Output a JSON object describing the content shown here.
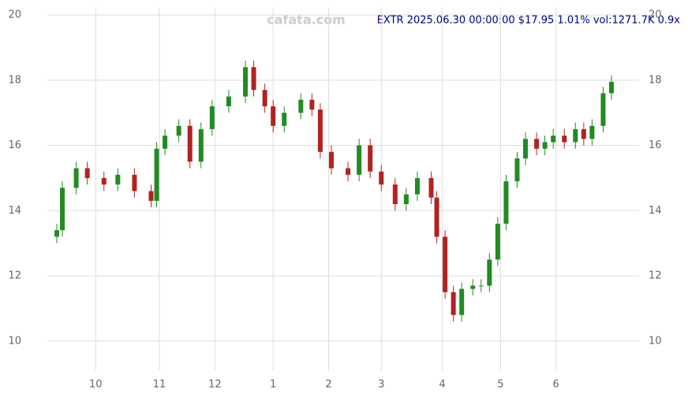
{
  "chart_data": {
    "type": "candlestick",
    "title": "EXTR 2025.06.30 00:00:00 $17.95 1.01% vol:1271.7K 0.9x",
    "watermark": "cafata.com",
    "up_color": "#228b22",
    "down_color": "#b22222",
    "grid": true,
    "x": [
      0,
      2,
      7,
      11,
      17,
      22,
      28,
      34,
      36,
      39,
      44,
      48,
      52,
      56,
      62,
      68,
      71,
      75,
      78,
      82,
      88,
      92,
      95,
      99,
      105,
      109,
      113,
      117,
      122,
      126,
      130,
      135,
      137,
      140,
      143,
      146,
      150,
      153,
      156,
      159,
      162,
      166,
      169,
      173,
      176,
      179,
      183,
      187,
      190,
      193,
      197,
      200
    ],
    "open": [
      13.2,
      13.4,
      14.7,
      15.3,
      15.0,
      14.8,
      15.1,
      14.6,
      14.3,
      15.9,
      16.3,
      16.6,
      15.5,
      16.5,
      17.2,
      17.5,
      18.4,
      17.7,
      17.2,
      16.6,
      17.0,
      17.4,
      17.1,
      15.8,
      15.3,
      15.1,
      16.0,
      15.2,
      14.8,
      14.2,
      14.5,
      15.0,
      14.4,
      13.2,
      11.5,
      10.8,
      11.6,
      11.7,
      11.7,
      12.5,
      13.6,
      14.9,
      15.6,
      16.2,
      15.9,
      16.1,
      16.3,
      16.1,
      16.5,
      16.2,
      16.6,
      17.6
    ],
    "high": [
      13.6,
      14.9,
      15.5,
      15.5,
      15.2,
      15.3,
      15.3,
      14.8,
      16.1,
      16.5,
      16.8,
      16.8,
      16.7,
      17.4,
      17.7,
      18.6,
      18.6,
      17.9,
      17.4,
      17.2,
      17.6,
      17.6,
      17.3,
      16.0,
      15.5,
      16.2,
      16.2,
      15.4,
      15.0,
      14.7,
      15.2,
      15.2,
      14.6,
      13.4,
      11.7,
      11.8,
      11.9,
      11.9,
      12.7,
      13.8,
      15.1,
      15.8,
      16.4,
      16.4,
      16.3,
      16.5,
      16.5,
      16.7,
      16.7,
      16.8,
      17.8,
      18.15
    ],
    "low": [
      13.0,
      13.2,
      14.5,
      14.8,
      14.6,
      14.6,
      14.4,
      14.1,
      14.1,
      15.7,
      16.1,
      15.3,
      15.3,
      16.3,
      17.0,
      17.3,
      17.5,
      17.0,
      16.4,
      16.4,
      16.8,
      16.9,
      15.6,
      15.1,
      14.9,
      14.9,
      15.0,
      14.6,
      14.0,
      14.0,
      14.3,
      14.2,
      13.0,
      11.3,
      10.6,
      10.6,
      11.4,
      11.5,
      11.5,
      12.3,
      13.4,
      14.7,
      15.4,
      15.7,
      15.7,
      15.9,
      15.9,
      15.9,
      16.0,
      16.0,
      16.4,
      17.4
    ],
    "close": [
      13.4,
      14.7,
      15.3,
      15.0,
      14.8,
      15.1,
      14.6,
      14.3,
      15.9,
      16.3,
      16.6,
      15.5,
      16.5,
      17.2,
      17.5,
      18.4,
      17.7,
      17.2,
      16.6,
      17.0,
      17.4,
      17.1,
      15.8,
      15.3,
      15.1,
      16.0,
      15.2,
      14.8,
      14.2,
      14.5,
      15.0,
      14.4,
      13.2,
      11.5,
      10.8,
      11.6,
      11.7,
      11.7,
      12.5,
      13.6,
      14.9,
      15.6,
      16.2,
      15.9,
      16.1,
      16.3,
      16.1,
      16.5,
      16.2,
      16.6,
      17.6,
      17.95
    ],
    "xlim": [
      0,
      200
    ],
    "xticks": [
      {
        "value": 14,
        "label": "10"
      },
      {
        "value": 37,
        "label": "11"
      },
      {
        "value": 57,
        "label": "12"
      },
      {
        "value": 78,
        "label": "1"
      },
      {
        "value": 98,
        "label": "2"
      },
      {
        "value": 117,
        "label": "3"
      },
      {
        "value": 139,
        "label": "4"
      },
      {
        "value": 160,
        "label": "5"
      },
      {
        "value": 180,
        "label": "6"
      }
    ],
    "ylim": [
      9.1,
      20.46
    ],
    "yticks": [
      10,
      12,
      14,
      16,
      18,
      20
    ]
  }
}
